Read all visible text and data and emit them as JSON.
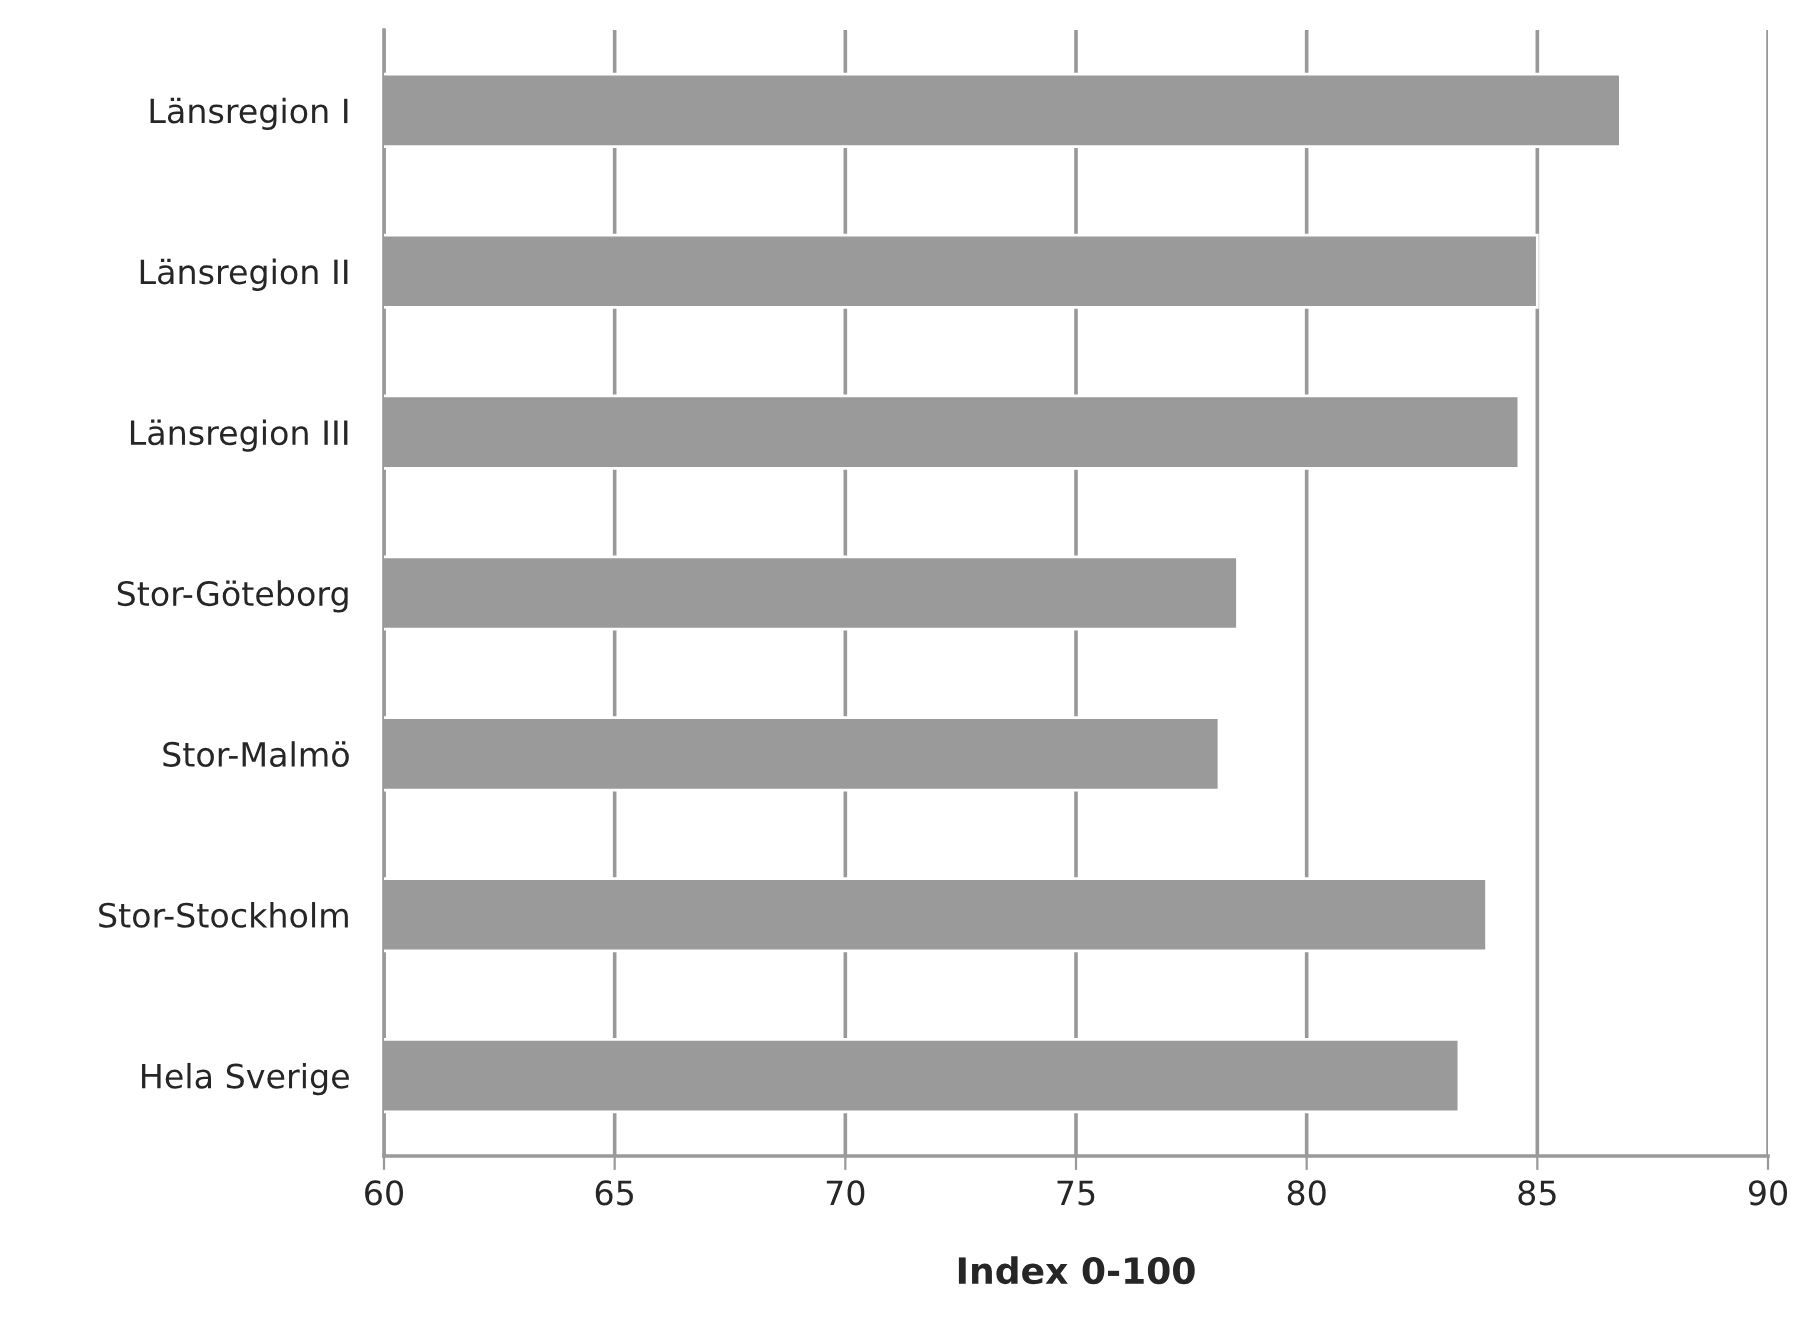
{
  "chart_data": {
    "type": "bar",
    "orientation": "horizontal",
    "xlabel": "Index 0-100",
    "categories": [
      "Länsregion I",
      "Länsregion II",
      "Länsregion III",
      "Stor-Göteborg",
      "Stor-Malmö",
      "Stor-Stockholm",
      "Hela Sverige"
    ],
    "values": [
      86.8,
      85.0,
      84.6,
      78.5,
      78.1,
      83.9,
      83.3
    ],
    "color": "#9a9a9a",
    "xlim": [
      60,
      90
    ],
    "xticks": [
      60,
      65,
      70,
      75,
      80,
      85,
      90
    ],
    "grid": "x"
  }
}
